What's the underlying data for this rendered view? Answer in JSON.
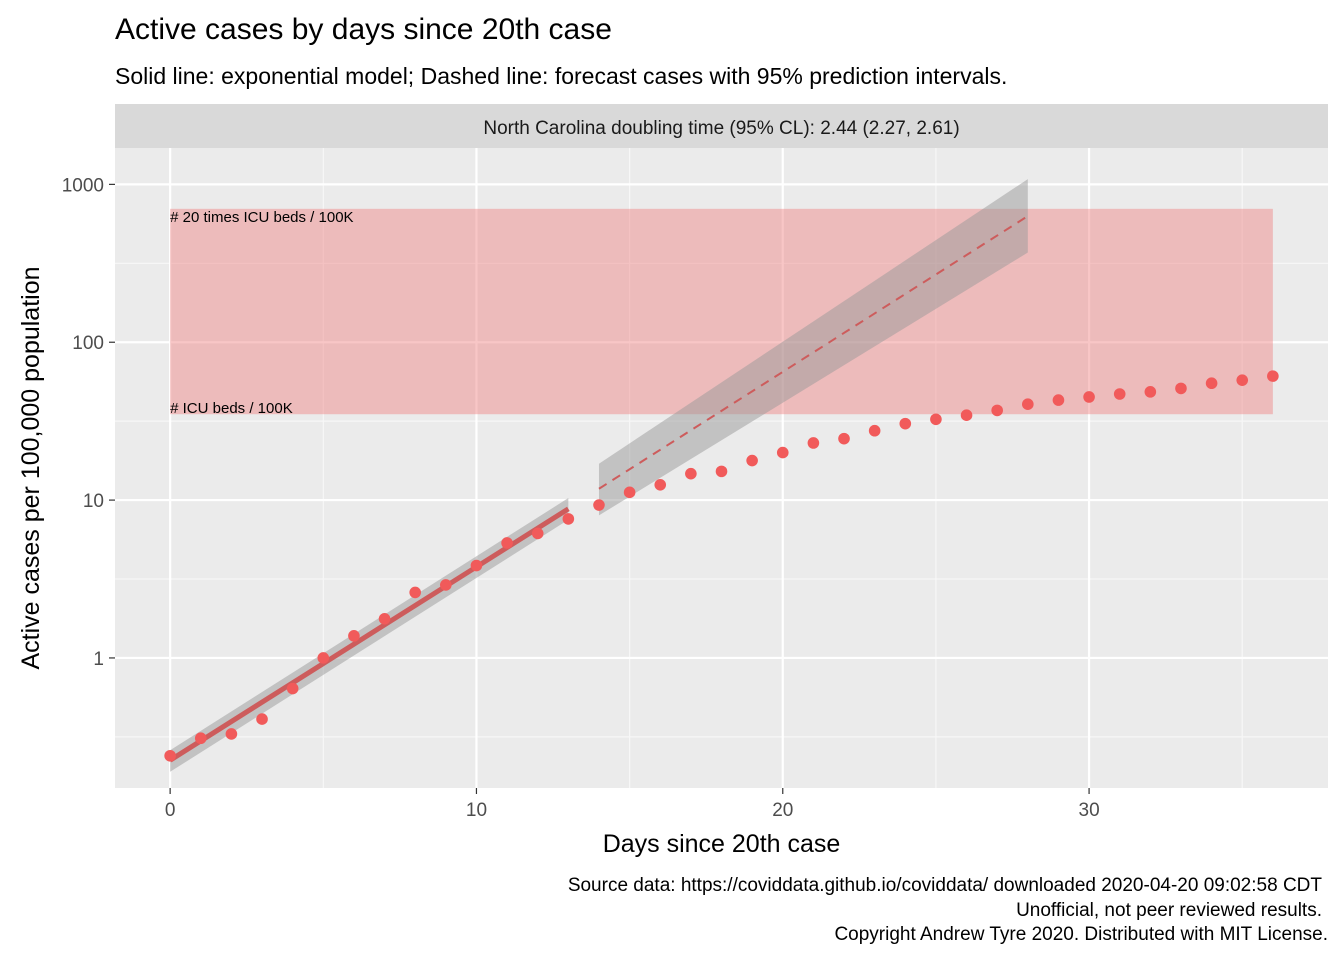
{
  "chart_data": {
    "type": "scatter",
    "title": "Active cases by days since 20th case",
    "subtitle": "Solid line: exponential model; Dashed line: forecast cases with 95% prediction intervals.",
    "facet_label": "North Carolina doubling time (95% CL): 2.44 (2.27, 2.61)",
    "xlabel": "Days since 20th case",
    "ylabel": "Active cases per 100,000 population",
    "x_ticks": [
      0,
      10,
      20,
      30
    ],
    "y_ticks": [
      1,
      10,
      100,
      1000
    ],
    "y_tick_labels": [
      "1",
      "10",
      "100",
      "1000"
    ],
    "xlim": [
      -1.8,
      37.8
    ],
    "ylim": [
      0.15,
      1700
    ],
    "y_scale": "log10",
    "grid": true,
    "icu_band": {
      "x": [
        0,
        36
      ],
      "y": [
        35,
        700
      ],
      "color": "#f08080",
      "label_upper": "# 20 times ICU beds / 100K",
      "label_lower": "# ICU beds / 100K"
    },
    "observed": {
      "x": [
        0,
        1,
        2,
        3,
        4,
        5,
        6,
        7,
        8,
        9,
        10,
        11,
        12,
        13,
        14,
        15,
        16,
        17,
        18,
        19,
        20,
        21,
        22,
        23,
        24,
        25,
        26,
        27,
        28,
        29,
        30,
        31,
        32,
        33,
        34,
        35,
        36
      ],
      "y": [
        0.24,
        0.31,
        0.33,
        0.41,
        0.64,
        1.0,
        1.38,
        1.77,
        2.6,
        2.9,
        3.85,
        5.35,
        6.15,
        7.6,
        9.3,
        11.2,
        12.5,
        14.7,
        15.2,
        17.8,
        20.0,
        23.0,
        24.5,
        27.5,
        30.5,
        32.5,
        34.5,
        37.0,
        40.5,
        43.0,
        45.0,
        47.0,
        48.5,
        51.0,
        55.0,
        57.5,
        61.0
      ],
      "color": "#f15a5a"
    },
    "fit": {
      "x": [
        0,
        13
      ],
      "y": [
        0.225,
        8.8
      ],
      "ci_lower": [
        0.19,
        7.5
      ],
      "ci_upper": [
        0.26,
        10.3
      ],
      "color": "#cd5c5c"
    },
    "forecast": {
      "x": [
        14,
        28
      ],
      "y": [
        11.8,
        630
      ],
      "pi_lower": [
        8.0,
        370
      ],
      "pi_upper": [
        17.0,
        1080
      ],
      "color": "#cd5c5c"
    },
    "caption": [
      "Source data: https://coviddata.github.io/coviddata/ downloaded  2020-04-20 09:02:58 CDT",
      "Unofficial, not peer reviewed results.",
      "Copyright Andrew Tyre 2020. Distributed with MIT License."
    ]
  }
}
